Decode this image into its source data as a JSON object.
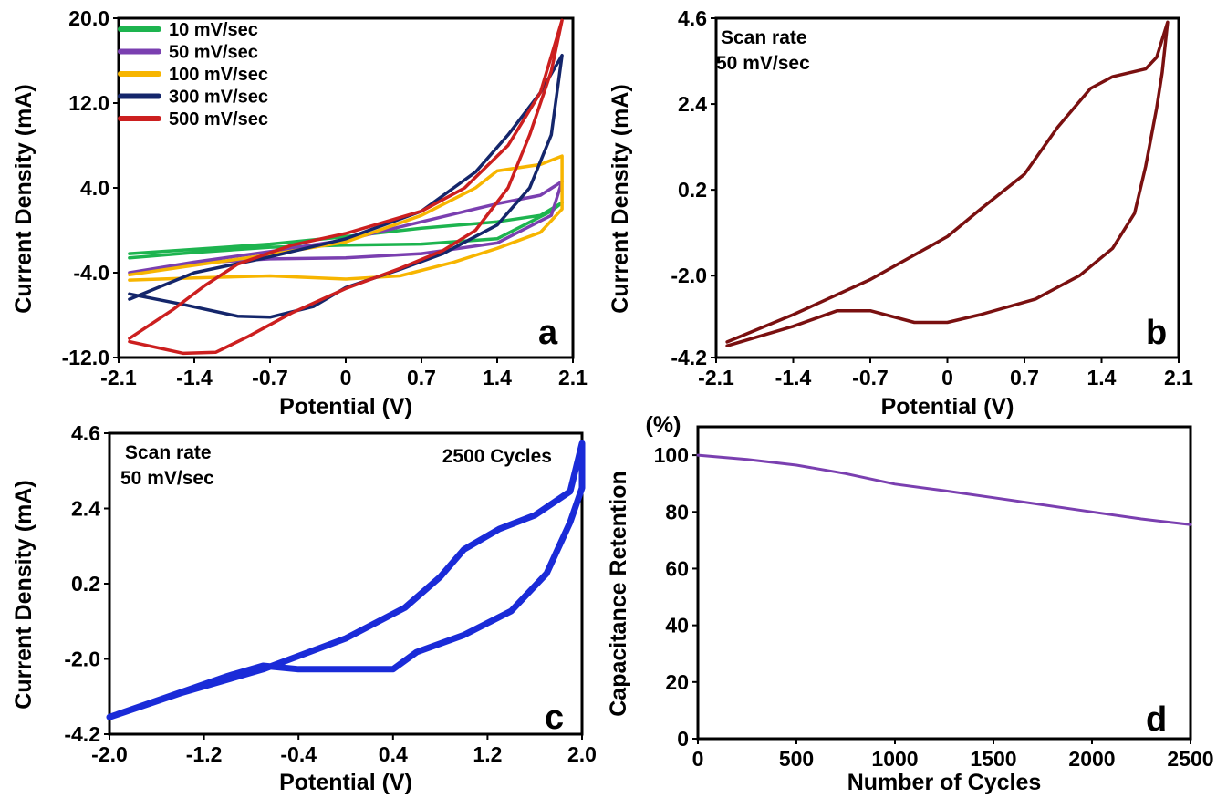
{
  "chart_data": [
    {
      "panel": "a",
      "type": "line",
      "xlabel": "Potential (V)",
      "ylabel": "Current Density (mA)",
      "xlim": [
        -2.1,
        2.1
      ],
      "ylim": [
        -12.0,
        20.0
      ],
      "xticks": [
        "-2.1",
        "-1.4",
        "-0.7",
        "0",
        "0.7",
        "1.4",
        "2.1"
      ],
      "yticks": [
        "-12.0",
        "-4.0",
        "4.0",
        "12.0",
        "20.0"
      ],
      "legend_position": "top-left",
      "colors": {
        "10 mV/sec": "#1db44f",
        "50 mV/sec": "#7a3fb0",
        "100 mV/sec": "#f7b500",
        "300 mV/sec": "#14266b",
        "500 mV/sec": "#cc1f1f"
      },
      "series": [
        {
          "name": "10 mV/sec",
          "color": "#1db44f",
          "forward": [
            [
              -2.0,
              -2.2
            ],
            [
              -1.4,
              -1.8
            ],
            [
              -0.7,
              -1.3
            ],
            [
              0.0,
              -0.6
            ],
            [
              0.7,
              0.2
            ],
            [
              1.4,
              0.8
            ],
            [
              1.8,
              1.4
            ],
            [
              2.0,
              2.6
            ]
          ],
          "reverse": [
            [
              2.0,
              2.6
            ],
            [
              1.9,
              1.8
            ],
            [
              1.4,
              -0.8
            ],
            [
              0.7,
              -1.3
            ],
            [
              0.0,
              -1.4
            ],
            [
              -0.7,
              -1.6
            ],
            [
              -1.4,
              -2.1
            ],
            [
              -2.0,
              -2.6
            ]
          ]
        },
        {
          "name": "50 mV/sec",
          "color": "#7a3fb0",
          "forward": [
            [
              -2.0,
              -4.0
            ],
            [
              -1.4,
              -3.0
            ],
            [
              -0.7,
              -2.0
            ],
            [
              0.0,
              -0.9
            ],
            [
              0.7,
              0.8
            ],
            [
              1.4,
              2.5
            ],
            [
              1.8,
              3.3
            ],
            [
              2.0,
              4.6
            ]
          ],
          "reverse": [
            [
              2.0,
              4.6
            ],
            [
              1.95,
              3.0
            ],
            [
              1.9,
              1.4
            ],
            [
              1.4,
              -1.2
            ],
            [
              0.7,
              -2.2
            ],
            [
              0.0,
              -2.6
            ],
            [
              -0.7,
              -2.7
            ],
            [
              -1.4,
              -3.1
            ],
            [
              -2.0,
              -4.0
            ]
          ]
        },
        {
          "name": "100 mV/sec",
          "color": "#f7b500",
          "forward": [
            [
              -2.0,
              -4.2
            ],
            [
              -1.4,
              -3.3
            ],
            [
              -0.7,
              -2.3
            ],
            [
              0.0,
              -1.1
            ],
            [
              0.7,
              1.4
            ],
            [
              1.2,
              4.0
            ],
            [
              1.4,
              5.6
            ],
            [
              1.8,
              6.2
            ],
            [
              2.0,
              7.0
            ]
          ],
          "reverse": [
            [
              2.0,
              7.0
            ],
            [
              2.0,
              2.0
            ],
            [
              1.8,
              -0.2
            ],
            [
              1.4,
              -1.7
            ],
            [
              1.0,
              -3.0
            ],
            [
              0.5,
              -4.3
            ],
            [
              0.0,
              -4.6
            ],
            [
              -0.7,
              -4.3
            ],
            [
              -1.4,
              -4.5
            ],
            [
              -2.0,
              -4.7
            ]
          ]
        },
        {
          "name": "300 mV/sec",
          "color": "#14266b",
          "forward": [
            [
              -2.0,
              -6.5
            ],
            [
              -1.4,
              -4.0
            ],
            [
              -0.7,
              -2.5
            ],
            [
              0.0,
              -0.8
            ],
            [
              0.7,
              1.8
            ],
            [
              1.2,
              5.5
            ],
            [
              1.5,
              9.0
            ],
            [
              1.8,
              13.0
            ],
            [
              2.0,
              16.5
            ]
          ],
          "reverse": [
            [
              2.0,
              16.5
            ],
            [
              1.9,
              9.0
            ],
            [
              1.7,
              4.0
            ],
            [
              1.4,
              0.5
            ],
            [
              0.9,
              -2.2
            ],
            [
              0.5,
              -3.7
            ],
            [
              0.0,
              -5.4
            ],
            [
              -0.3,
              -7.2
            ],
            [
              -0.7,
              -8.2
            ],
            [
              -1.0,
              -8.1
            ],
            [
              -1.5,
              -7.0
            ],
            [
              -2.0,
              -6.0
            ]
          ]
        },
        {
          "name": "500 mV/sec",
          "color": "#cc1f1f",
          "forward": [
            [
              -2.0,
              -10.2
            ],
            [
              -1.6,
              -7.5
            ],
            [
              -1.3,
              -5.2
            ],
            [
              -1.0,
              -3.2
            ],
            [
              -0.5,
              -1.4
            ],
            [
              0.0,
              -0.3
            ],
            [
              0.7,
              1.8
            ],
            [
              1.1,
              4.0
            ],
            [
              1.5,
              8.0
            ],
            [
              1.8,
              13.0
            ],
            [
              2.0,
              19.8
            ]
          ],
          "reverse": [
            [
              2.0,
              19.8
            ],
            [
              1.9,
              15.0
            ],
            [
              1.7,
              9.0
            ],
            [
              1.5,
              4.0
            ],
            [
              1.2,
              0.0
            ],
            [
              0.9,
              -1.9
            ],
            [
              0.5,
              -3.6
            ],
            [
              0.0,
              -5.5
            ],
            [
              -0.5,
              -7.8
            ],
            [
              -0.9,
              -10.0
            ],
            [
              -1.2,
              -11.5
            ],
            [
              -1.5,
              -11.6
            ],
            [
              -2.0,
              -10.5
            ]
          ]
        }
      ]
    },
    {
      "panel": "b",
      "type": "line",
      "xlabel": "Potential (V)",
      "ylabel": "Current Density (mA)",
      "xlim": [
        -2.1,
        2.1
      ],
      "ylim": [
        -4.1,
        4.6
      ],
      "xticks": [
        "-2.1",
        "-1.4",
        "-0.7",
        "0",
        "0.7",
        "1.4",
        "2.1"
      ],
      "yticks": [
        "-4.2",
        "-2.0",
        "0.2",
        "2.4",
        "4.6"
      ],
      "annotation": [
        "Scan rate",
        "50 mV/sec"
      ],
      "series": [
        {
          "color": "#7a1010",
          "forward": [
            [
              -2.0,
              -3.7
            ],
            [
              -1.4,
              -3.0
            ],
            [
              -0.7,
              -2.1
            ],
            [
              0.0,
              -1.0
            ],
            [
              0.3,
              -0.3
            ],
            [
              0.7,
              0.6
            ],
            [
              1.0,
              1.8
            ],
            [
              1.3,
              2.8
            ],
            [
              1.5,
              3.1
            ],
            [
              1.8,
              3.3
            ],
            [
              1.9,
              3.6
            ],
            [
              2.0,
              4.5
            ]
          ],
          "reverse": [
            [
              2.0,
              4.5
            ],
            [
              1.95,
              3.2
            ],
            [
              1.9,
              2.3
            ],
            [
              1.8,
              0.8
            ],
            [
              1.7,
              -0.4
            ],
            [
              1.5,
              -1.3
            ],
            [
              1.2,
              -2.0
            ],
            [
              0.8,
              -2.6
            ],
            [
              0.3,
              -3.0
            ],
            [
              0.0,
              -3.2
            ],
            [
              -0.3,
              -3.2
            ],
            [
              -0.7,
              -2.9
            ],
            [
              -1.0,
              -2.9
            ],
            [
              -1.4,
              -3.3
            ],
            [
              -2.0,
              -3.8
            ]
          ]
        }
      ]
    },
    {
      "panel": "c",
      "type": "line",
      "xlabel": "Potential (V)",
      "ylabel": "Current Density (mA)",
      "xlim": [
        -2.0,
        2.0
      ],
      "ylim": [
        -4.2,
        4.6
      ],
      "xticks": [
        "-2.0",
        "-1.2",
        "-0.4",
        "0.4",
        "1.2",
        "2.0"
      ],
      "yticks": [
        "-4.2",
        "-2.0",
        "0.2",
        "2.4",
        "4.6"
      ],
      "annotation": [
        "Scan rate",
        "50 mV/sec"
      ],
      "cycles_note": "2500 Cycles",
      "series": [
        {
          "color": "#1a2bd8",
          "forward": [
            [
              -2.0,
              -3.7
            ],
            [
              -1.4,
              -3.0
            ],
            [
              -0.7,
              -2.3
            ],
            [
              0.0,
              -1.4
            ],
            [
              0.5,
              -0.5
            ],
            [
              0.8,
              0.4
            ],
            [
              1.0,
              1.2
            ],
            [
              1.3,
              1.8
            ],
            [
              1.6,
              2.2
            ],
            [
              1.9,
              2.9
            ],
            [
              2.0,
              4.3
            ]
          ],
          "reverse": [
            [
              2.0,
              4.3
            ],
            [
              2.0,
              3.0
            ],
            [
              1.9,
              2.0
            ],
            [
              1.7,
              0.5
            ],
            [
              1.4,
              -0.6
            ],
            [
              1.0,
              -1.3
            ],
            [
              0.6,
              -1.8
            ],
            [
              0.4,
              -2.3
            ],
            [
              0.0,
              -2.3
            ],
            [
              -0.4,
              -2.3
            ],
            [
              -0.7,
              -2.2
            ],
            [
              -1.0,
              -2.5
            ],
            [
              -1.5,
              -3.1
            ],
            [
              -2.0,
              -3.7
            ]
          ]
        }
      ]
    },
    {
      "panel": "d",
      "type": "line",
      "xlabel": "Number of Cycles",
      "ylabel": "Capacitance Retention",
      "ylabel_unit": "(%)",
      "xlim": [
        0,
        2500
      ],
      "ylim": [
        0,
        110
      ],
      "xticks": [
        "0",
        "500",
        "1000",
        "1500",
        "2000",
        "2500"
      ],
      "yticks": [
        "0",
        "20",
        "40",
        "60",
        "80",
        "100"
      ],
      "series": [
        {
          "color": "#7a3fb0",
          "x": [
            0,
            250,
            500,
            750,
            1000,
            1250,
            1500,
            1750,
            2000,
            2250,
            2500
          ],
          "y": [
            100,
            98.5,
            96.5,
            93.5,
            89.8,
            87.5,
            85.0,
            82.5,
            80.0,
            77.5,
            75.5
          ]
        }
      ]
    }
  ]
}
